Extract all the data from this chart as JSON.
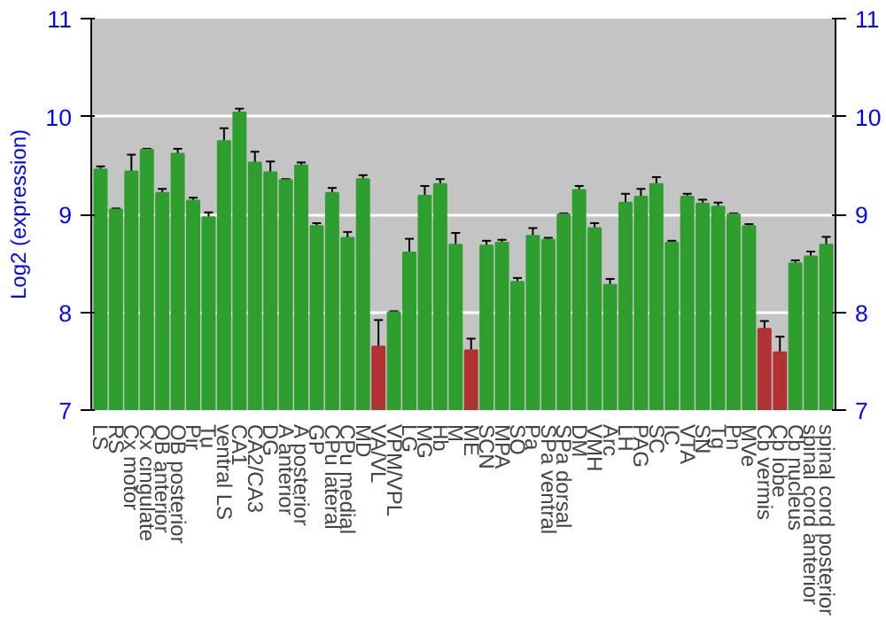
{
  "chart_data": {
    "type": "bar",
    "ylabel": "Log2 (expression)",
    "categories": [
      "LS",
      "RS",
      "Cx motor",
      "Cx cingulate",
      "OB anterior",
      "OB posterior",
      "Pir",
      "Tu",
      "ventral LS",
      "CA1",
      "CA2/CA3",
      "DG",
      "A anterior",
      "A posterior",
      "GP",
      "CPu lateral",
      "CPu medial",
      "MD",
      "VA/VL",
      "VPM/VPL",
      "LG",
      "MG",
      "Hb",
      "M",
      "ME",
      "SCN",
      "MPA",
      "SO",
      "Pa",
      "SPa ventral",
      "SPa dorsal",
      "DM",
      "VMH",
      "Arc",
      "LH",
      "PAG",
      "SC",
      "IC",
      "VTA",
      "SN",
      "Tg",
      "Pn",
      "MVe",
      "Cb vermis",
      "Cb lobe",
      "Cb nucleus",
      "spinal cord anterior",
      "spinal cord posterior"
    ],
    "values": [
      9.46,
      9.05,
      9.44,
      9.66,
      9.22,
      9.62,
      9.14,
      8.97,
      9.75,
      10.04,
      9.53,
      9.43,
      9.35,
      9.5,
      8.88,
      9.22,
      8.76,
      9.36,
      7.65,
      8.0,
      8.61,
      9.19,
      9.31,
      8.69,
      7.61,
      8.68,
      8.71,
      8.31,
      8.78,
      8.74,
      9.0,
      9.25,
      8.86,
      8.28,
      9.12,
      9.18,
      9.31,
      8.71,
      9.18,
      9.11,
      9.08,
      9.0,
      8.88,
      7.83,
      7.59,
      8.5,
      8.57,
      8.69
    ],
    "errors": [
      0.03,
      0.01,
      0.17,
      0.01,
      0.04,
      0.05,
      0.03,
      0.05,
      0.13,
      0.04,
      0.11,
      0.11,
      0.01,
      0.03,
      0.03,
      0.05,
      0.06,
      0.04,
      0.27,
      0.01,
      0.14,
      0.1,
      0.05,
      0.12,
      0.12,
      0.05,
      0.03,
      0.04,
      0.08,
      0.02,
      0.01,
      0.04,
      0.05,
      0.06,
      0.09,
      0.08,
      0.07,
      0.02,
      0.03,
      0.04,
      0.04,
      0.01,
      0.02,
      0.08,
      0.16,
      0.03,
      0.05,
      0.08
    ],
    "colors": [
      "#2e9e2e",
      "#2e9e2e",
      "#2e9e2e",
      "#2e9e2e",
      "#2e9e2e",
      "#2e9e2e",
      "#2e9e2e",
      "#2e9e2e",
      "#2e9e2e",
      "#2e9e2e",
      "#2e9e2e",
      "#2e9e2e",
      "#2e9e2e",
      "#2e9e2e",
      "#2e9e2e",
      "#2e9e2e",
      "#2e9e2e",
      "#2e9e2e",
      "#b03232",
      "#2e9e2e",
      "#2e9e2e",
      "#2e9e2e",
      "#2e9e2e",
      "#2e9e2e",
      "#b03232",
      "#2e9e2e",
      "#2e9e2e",
      "#2e9e2e",
      "#2e9e2e",
      "#2e9e2e",
      "#2e9e2e",
      "#2e9e2e",
      "#2e9e2e",
      "#2e9e2e",
      "#2e9e2e",
      "#2e9e2e",
      "#2e9e2e",
      "#2e9e2e",
      "#2e9e2e",
      "#2e9e2e",
      "#2e9e2e",
      "#2e9e2e",
      "#2e9e2e",
      "#b03232",
      "#b03232",
      "#2e9e2e",
      "#2e9e2e",
      "#2e9e2e"
    ],
    "ylim": [
      7,
      11
    ],
    "yticks": [
      7,
      8,
      9,
      10,
      11
    ],
    "y2lim": [
      7,
      11
    ],
    "y2ticks": [
      7,
      8,
      9,
      10,
      11
    ],
    "grid": "y"
  }
}
